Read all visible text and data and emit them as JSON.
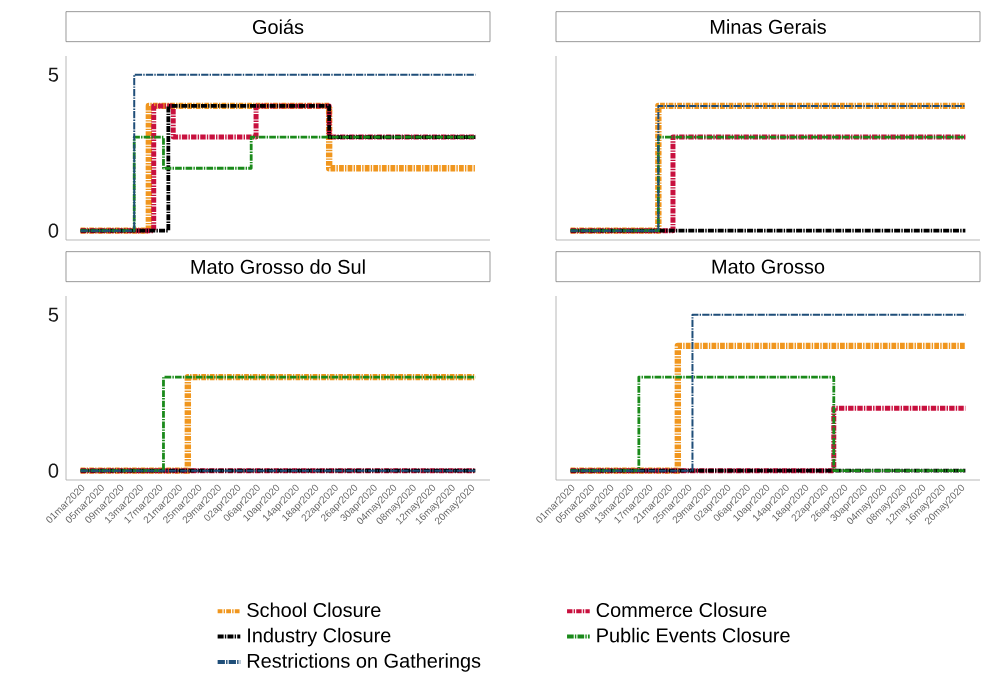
{
  "chart_data": [
    {
      "type": "step",
      "title": "Goiás",
      "xlim": [
        "2020-02-27",
        "2020-05-24"
      ],
      "ylim": [
        -0.3,
        5.6
      ],
      "yticks": [
        0,
        5
      ],
      "tick_labels": "y",
      "line_style": "dashed",
      "series": [
        {
          "color": "#f0961e",
          "x": [
            "2020-03-01",
            "2020-03-15",
            "2020-04-21",
            "2020-05-21"
          ],
          "values": [
            0,
            4,
            2,
            2
          ]
        },
        {
          "color": "#c8103e",
          "x": [
            "2020-03-01",
            "2020-03-16",
            "2020-03-20",
            "2020-04-06",
            "2020-04-21",
            "2020-05-21"
          ],
          "values": [
            0,
            4,
            3,
            4,
            3,
            3
          ]
        },
        {
          "color": "#000000",
          "x": [
            "2020-03-01",
            "2020-03-19",
            "2020-04-21",
            "2020-05-21"
          ],
          "values": [
            0,
            4,
            3,
            3
          ]
        },
        {
          "color": "#1a8a1a",
          "x": [
            "2020-03-01",
            "2020-03-12",
            "2020-03-18",
            "2020-04-05",
            "2020-05-21"
          ],
          "values": [
            0,
            3,
            2,
            3,
            3
          ]
        },
        {
          "color": "#1f4e79",
          "x": [
            "2020-03-01",
            "2020-03-12",
            "2020-05-21"
          ],
          "values": [
            0,
            5,
            5
          ]
        }
      ]
    },
    {
      "type": "step",
      "title": "Minas Gerais",
      "xlim": [
        "2020-02-27",
        "2020-05-24"
      ],
      "ylim": [
        -0.3,
        5.6
      ],
      "yticks": [
        0,
        5
      ],
      "tick_labels": false,
      "line_style": "dashed",
      "series": [
        {
          "color": "#f0961e",
          "x": [
            "2020-03-01",
            "2020-03-19",
            "2020-05-21"
          ],
          "values": [
            0,
            4,
            4
          ]
        },
        {
          "color": "#c8103e",
          "x": [
            "2020-03-01",
            "2020-03-22",
            "2020-05-21"
          ],
          "values": [
            0,
            3,
            3
          ]
        },
        {
          "color": "#000000",
          "x": [
            "2020-03-01",
            "2020-05-21"
          ],
          "values": [
            0,
            0
          ]
        },
        {
          "color": "#1a8a1a",
          "x": [
            "2020-03-01",
            "2020-03-19",
            "2020-05-21"
          ],
          "values": [
            0,
            3,
            3
          ]
        },
        {
          "color": "#1f4e79",
          "x": [
            "2020-03-01",
            "2020-03-19",
            "2020-05-21"
          ],
          "values": [
            0,
            4,
            4
          ]
        }
      ]
    },
    {
      "type": "step",
      "title": "Mato Grosso do Sul",
      "xlim": [
        "2020-02-27",
        "2020-05-24"
      ],
      "ylim": [
        -0.3,
        5.6
      ],
      "yticks": [
        0,
        5
      ],
      "line_style": "dashed",
      "xticks": [
        {
          "value": "2020-03-01",
          "label": "01mar2020"
        },
        {
          "value": "2020-03-05",
          "label": "05mar2020"
        },
        {
          "value": "2020-03-09",
          "label": "09mar2020"
        },
        {
          "value": "2020-03-13",
          "label": "13mar2020"
        },
        {
          "value": "2020-03-17",
          "label": "17mar2020"
        },
        {
          "value": "2020-03-21",
          "label": "21mar2020"
        },
        {
          "value": "2020-03-25",
          "label": "25mar2020"
        },
        {
          "value": "2020-03-29",
          "label": "29mar2020"
        },
        {
          "value": "2020-04-02",
          "label": "02apr2020"
        },
        {
          "value": "2020-04-06",
          "label": "06apr2020"
        },
        {
          "value": "2020-04-10",
          "label": "10apr2020"
        },
        {
          "value": "2020-04-14",
          "label": "14apr2020"
        },
        {
          "value": "2020-04-18",
          "label": "18apr2020"
        },
        {
          "value": "2020-04-22",
          "label": "22apr2020"
        },
        {
          "value": "2020-04-26",
          "label": "26apr2020"
        },
        {
          "value": "2020-04-30",
          "label": "30apr2020"
        },
        {
          "value": "2020-05-04",
          "label": "04may2020"
        },
        {
          "value": "2020-05-08",
          "label": "08may2020"
        },
        {
          "value": "2020-05-12",
          "label": "12may2020"
        },
        {
          "value": "2020-05-16",
          "label": "16may2020"
        },
        {
          "value": "2020-05-20",
          "label": "20may2020"
        }
      ],
      "series": [
        {
          "color": "#f0961e",
          "x": [
            "2020-03-01",
            "2020-03-23",
            "2020-05-21"
          ],
          "values": [
            0,
            3,
            3
          ]
        },
        {
          "color": "#c8103e",
          "x": [
            "2020-03-01",
            "2020-05-21"
          ],
          "values": [
            0,
            0
          ]
        },
        {
          "color": "#000000",
          "x": [
            "2020-03-01",
            "2020-05-21"
          ],
          "values": [
            0,
            0
          ]
        },
        {
          "color": "#1a8a1a",
          "x": [
            "2020-03-01",
            "2020-03-18",
            "2020-05-21"
          ],
          "values": [
            0,
            3,
            3
          ]
        },
        {
          "color": "#1f4e79",
          "x": [
            "2020-03-01",
            "2020-05-21"
          ],
          "values": [
            0,
            0
          ]
        }
      ]
    },
    {
      "type": "step",
      "title": "Mato Grosso",
      "xlim": [
        "2020-02-27",
        "2020-05-24"
      ],
      "ylim": [
        -0.3,
        5.6
      ],
      "yticks": [
        0,
        5
      ],
      "tick_labels": "x",
      "line_style": "dashed",
      "legend": "bottom",
      "xticks": [
        {
          "value": "2020-03-01",
          "label": "01mar2020"
        },
        {
          "value": "2020-03-05",
          "label": "05mar2020"
        },
        {
          "value": "2020-03-09",
          "label": "09mar2020"
        },
        {
          "value": "2020-03-13",
          "label": "13mar2020"
        },
        {
          "value": "2020-03-17",
          "label": "17mar2020"
        },
        {
          "value": "2020-03-21",
          "label": "21mar2020"
        },
        {
          "value": "2020-03-25",
          "label": "25mar2020"
        },
        {
          "value": "2020-03-29",
          "label": "29mar2020"
        },
        {
          "value": "2020-04-02",
          "label": "02apr2020"
        },
        {
          "value": "2020-04-06",
          "label": "06apr2020"
        },
        {
          "value": "2020-04-10",
          "label": "10apr2020"
        },
        {
          "value": "2020-04-14",
          "label": "14apr2020"
        },
        {
          "value": "2020-04-18",
          "label": "18apr2020"
        },
        {
          "value": "2020-04-22",
          "label": "22apr2020"
        },
        {
          "value": "2020-04-26",
          "label": "26apr2020"
        },
        {
          "value": "2020-04-30",
          "label": "30apr2020"
        },
        {
          "value": "2020-05-04",
          "label": "04may2020"
        },
        {
          "value": "2020-05-08",
          "label": "08may2020"
        },
        {
          "value": "2020-05-12",
          "label": "12may2020"
        },
        {
          "value": "2020-05-16",
          "label": "16may2020"
        },
        {
          "value": "2020-05-20",
          "label": "20may2020"
        }
      ],
      "series": [
        {
          "name": "School Closure",
          "color": "#f0961e",
          "x": [
            "2020-03-01",
            "2020-03-23",
            "2020-05-21"
          ],
          "values": [
            0,
            4,
            4
          ]
        },
        {
          "name": "Commerce Closure",
          "color": "#c8103e",
          "x": [
            "2020-03-01",
            "2020-04-24",
            "2020-05-21"
          ],
          "values": [
            0,
            2,
            2
          ]
        },
        {
          "name": "Industry Closure",
          "color": "#000000",
          "x": [
            "2020-03-01",
            "2020-05-21"
          ],
          "values": [
            0,
            0
          ]
        },
        {
          "name": "Public Events Closure",
          "color": "#1a8a1a",
          "x": [
            "2020-03-01",
            "2020-03-15",
            "2020-04-24",
            "2020-05-21"
          ],
          "values": [
            0,
            3,
            0,
            0
          ]
        },
        {
          "name": "Restrictions on Gatherings",
          "color": "#1f4e79",
          "x": [
            "2020-03-01",
            "2020-03-26",
            "2020-05-21"
          ],
          "values": [
            0,
            5,
            5
          ]
        }
      ]
    }
  ]
}
